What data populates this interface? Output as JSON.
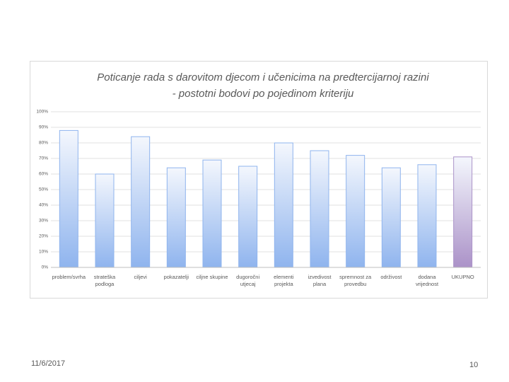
{
  "chart_data": {
    "type": "bar",
    "title": "Poticanje rada s darovitom djecom i učenicima na predtercijarnoj razini",
    "subtitle": "- postotni bodovi po pojedinom kriteriju",
    "categories": [
      "problem/svrha",
      "strateška podloga",
      "ciljevi",
      "pokazatelji",
      "ciljne skupine",
      "dugoročni utjecaj",
      "elementi projekta",
      "izvedivost plana",
      "spremnost za provedbu",
      "održivost",
      "dodana vrijednost",
      "UKUPNO"
    ],
    "values": [
      88,
      60,
      84,
      64,
      69,
      65,
      80,
      75,
      72,
      64,
      66,
      71
    ],
    "colors": [
      "#8fb4ee",
      "#8fb4ee",
      "#8fb4ee",
      "#8fb4ee",
      "#8fb4ee",
      "#8fb4ee",
      "#8fb4ee",
      "#8fb4ee",
      "#8fb4ee",
      "#8fb4ee",
      "#8fb4ee",
      "#ab92c8"
    ],
    "ylim": [
      0,
      100
    ],
    "yticks": [
      {
        "value": 0,
        "label": "0%"
      },
      {
        "value": 10,
        "label": "10%"
      },
      {
        "value": 20,
        "label": "20%"
      },
      {
        "value": 30,
        "label": "30%"
      },
      {
        "value": 40,
        "label": "40%"
      },
      {
        "value": 50,
        "label": "50%"
      },
      {
        "value": 60,
        "label": "60%"
      },
      {
        "value": 70,
        "label": "70%"
      },
      {
        "value": 80,
        "label": "80%"
      },
      {
        "value": 90,
        "label": "90%"
      },
      {
        "value": 100,
        "label": "100%"
      }
    ],
    "grid": true
  },
  "slide": {
    "date": "11/6/2017",
    "page_number": "10"
  }
}
